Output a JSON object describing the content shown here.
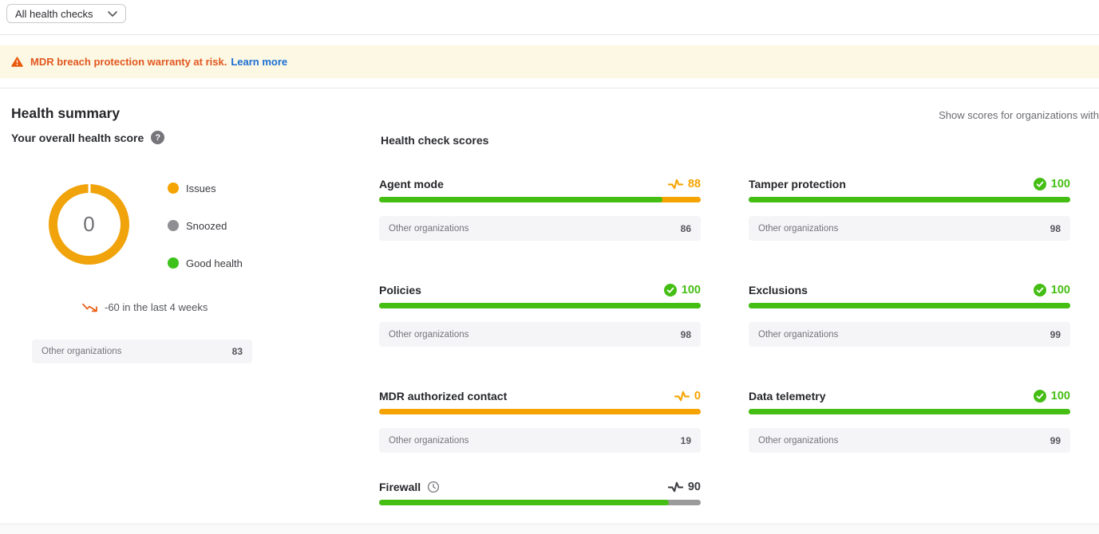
{
  "palette": {
    "green": "#45be14",
    "orange": "#f5a300",
    "snooze_rest": "#9b9b9b",
    "dark": "#3c3d42",
    "alert_orange": "#e2571f",
    "link_blue": "#1a6fd4"
  },
  "filter": {
    "value": "All health checks"
  },
  "banner": {
    "message": "MDR breach protection warranty at risk.",
    "link_label": "Learn more"
  },
  "summary": {
    "title": "Health summary",
    "show_scores_label": "Show scores for organizations with",
    "overall_label": "Your overall health score",
    "score_value": "0",
    "legend": [
      {
        "label": "Issues",
        "color": "#f5a300"
      },
      {
        "label": "Snoozed",
        "color": "#8e8e93"
      },
      {
        "label": "Good health",
        "color": "#3dc21b"
      }
    ],
    "trend_text": "-60 in the last 4 weeks",
    "benchmark": {
      "label": "Other organizations",
      "value": "83"
    }
  },
  "checks": {
    "title": "Health check scores",
    "benchmark_label": "Other organizations",
    "items": [
      {
        "name": "Agent mode",
        "score": 88,
        "status": "warning",
        "snoozed": false,
        "benchmark": "86"
      },
      {
        "name": "Tamper protection",
        "score": 100,
        "status": "good",
        "snoozed": false,
        "benchmark": "98"
      },
      {
        "name": "Policies",
        "score": 100,
        "status": "good",
        "snoozed": false,
        "benchmark": "98"
      },
      {
        "name": "Exclusions",
        "score": 100,
        "status": "good",
        "snoozed": false,
        "benchmark": "99"
      },
      {
        "name": "MDR authorized contact",
        "score": 0,
        "status": "warning",
        "snoozed": false,
        "benchmark": "19"
      },
      {
        "name": "Data telemetry",
        "score": 100,
        "status": "good",
        "snoozed": false,
        "benchmark": "99"
      },
      {
        "name": "Firewall",
        "score": 90,
        "status": "snoozed",
        "snoozed": true,
        "benchmark": null
      }
    ]
  }
}
